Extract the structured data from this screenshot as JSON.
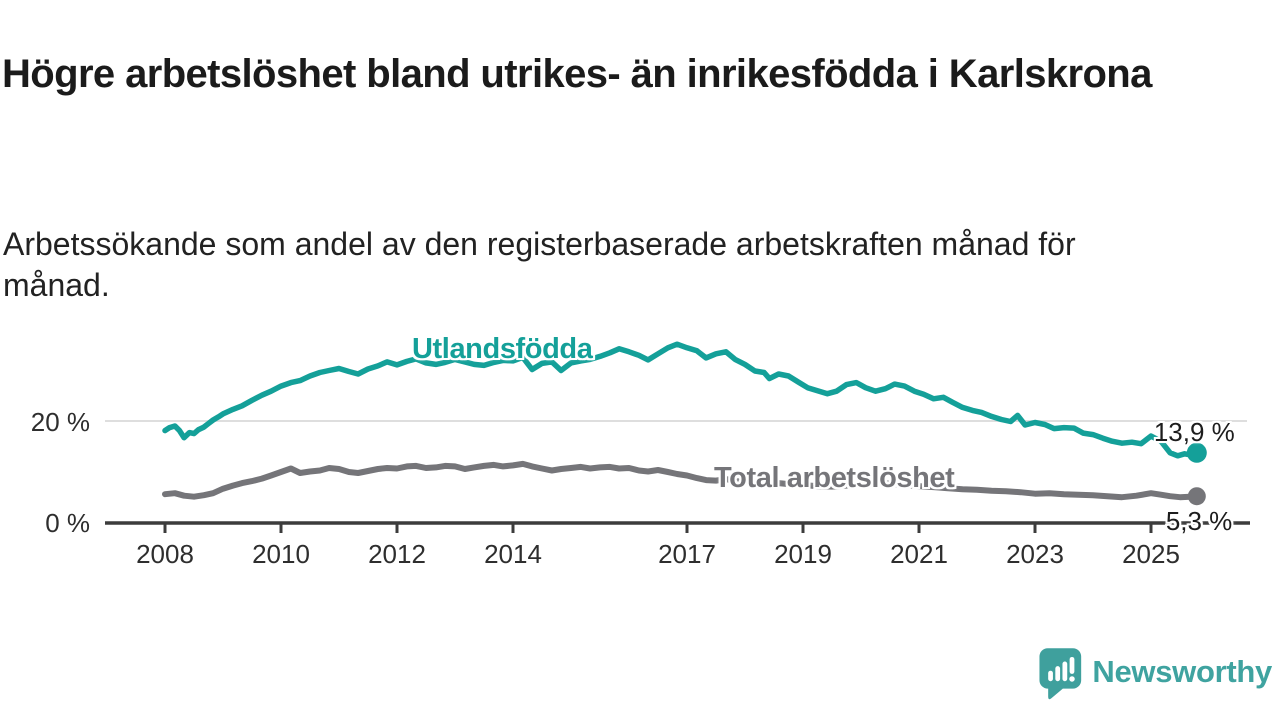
{
  "header": {
    "title": "Högre arbetslöshet bland utrikes- än inrikesfödda i Karlskrona",
    "subtitle": "Arbetssökande som andel av den registerbaserade arbetskraften månad för månad."
  },
  "chart_data": {
    "type": "line",
    "title": "Högre arbetslöshet bland utrikes- än inrikesfödda i Karlskrona",
    "xlabel": "",
    "ylabel": "Arbetssökande som andel av den registerbaserade arbetskraften",
    "x_range": [
      2007.0,
      2026.6
    ],
    "ylim": [
      0,
      40
    ],
    "grid": "horizontal gridline at 20% only",
    "legend_position": "labels drawn on lines",
    "x_ticks": [
      [
        2008,
        "2008"
      ],
      [
        2010,
        "2010"
      ],
      [
        2012,
        "2012"
      ],
      [
        2014,
        "2014"
      ],
      [
        2017,
        "2017"
      ],
      [
        2019,
        "2019"
      ],
      [
        2021,
        "2021"
      ],
      [
        2023,
        "2023"
      ],
      [
        2025,
        "2025"
      ]
    ],
    "y_ticks": [
      [
        0,
        "0 %"
      ],
      [
        20,
        "20 %"
      ]
    ],
    "series": [
      {
        "name": "Utlandsfödda",
        "color": "#14A099",
        "end_label": "13,9 %",
        "end_value": 13.9,
        "points": [
          [
            2008.0,
            18.3
          ],
          [
            2008.08,
            18.9
          ],
          [
            2008.17,
            19.2
          ],
          [
            2008.25,
            18.3
          ],
          [
            2008.33,
            16.9
          ],
          [
            2008.42,
            17.9
          ],
          [
            2008.5,
            17.7
          ],
          [
            2008.58,
            18.5
          ],
          [
            2008.67,
            19.0
          ],
          [
            2008.75,
            19.7
          ],
          [
            2008.83,
            20.4
          ],
          [
            2008.92,
            21.0
          ],
          [
            2009.0,
            21.6
          ],
          [
            2009.17,
            22.5
          ],
          [
            2009.33,
            23.2
          ],
          [
            2009.5,
            24.3
          ],
          [
            2009.67,
            25.3
          ],
          [
            2009.83,
            26.1
          ],
          [
            2010.0,
            27.1
          ],
          [
            2010.17,
            27.8
          ],
          [
            2010.33,
            28.2
          ],
          [
            2010.5,
            29.1
          ],
          [
            2010.67,
            29.8
          ],
          [
            2010.83,
            30.2
          ],
          [
            2011.0,
            30.6
          ],
          [
            2011.17,
            30.0
          ],
          [
            2011.33,
            29.5
          ],
          [
            2011.5,
            30.5
          ],
          [
            2011.67,
            31.1
          ],
          [
            2011.83,
            31.9
          ],
          [
            2012.0,
            31.3
          ],
          [
            2012.17,
            32.0
          ],
          [
            2012.33,
            32.5
          ],
          [
            2012.5,
            31.7
          ],
          [
            2012.67,
            31.4
          ],
          [
            2012.83,
            31.8
          ],
          [
            2013.0,
            32.4
          ],
          [
            2013.17,
            31.9
          ],
          [
            2013.33,
            31.4
          ],
          [
            2013.5,
            31.2
          ],
          [
            2013.67,
            31.8
          ],
          [
            2013.83,
            32.2
          ],
          [
            2014.0,
            32.1
          ],
          [
            2014.17,
            32.8
          ],
          [
            2014.33,
            30.4
          ],
          [
            2014.5,
            31.6
          ],
          [
            2014.67,
            31.9
          ],
          [
            2014.83,
            30.2
          ],
          [
            2015.0,
            31.7
          ],
          [
            2015.17,
            32.1
          ],
          [
            2015.33,
            32.4
          ],
          [
            2015.5,
            33.0
          ],
          [
            2015.67,
            33.7
          ],
          [
            2015.83,
            34.5
          ],
          [
            2016.0,
            33.9
          ],
          [
            2016.17,
            33.2
          ],
          [
            2016.33,
            32.3
          ],
          [
            2016.5,
            33.5
          ],
          [
            2016.67,
            34.7
          ],
          [
            2016.83,
            35.4
          ],
          [
            2017.0,
            34.7
          ],
          [
            2017.17,
            34.1
          ],
          [
            2017.33,
            32.7
          ],
          [
            2017.5,
            33.5
          ],
          [
            2017.67,
            33.9
          ],
          [
            2017.83,
            32.4
          ],
          [
            2018.0,
            31.4
          ],
          [
            2018.17,
            30.1
          ],
          [
            2018.33,
            29.8
          ],
          [
            2018.42,
            28.6
          ],
          [
            2018.58,
            29.5
          ],
          [
            2018.75,
            29.1
          ],
          [
            2018.92,
            27.9
          ],
          [
            2019.08,
            26.8
          ],
          [
            2019.25,
            26.2
          ],
          [
            2019.42,
            25.6
          ],
          [
            2019.58,
            26.1
          ],
          [
            2019.75,
            27.4
          ],
          [
            2019.92,
            27.8
          ],
          [
            2020.08,
            26.8
          ],
          [
            2020.25,
            26.1
          ],
          [
            2020.42,
            26.6
          ],
          [
            2020.58,
            27.5
          ],
          [
            2020.75,
            27.1
          ],
          [
            2020.92,
            26.1
          ],
          [
            2021.08,
            25.5
          ],
          [
            2021.25,
            24.6
          ],
          [
            2021.42,
            24.9
          ],
          [
            2021.58,
            23.9
          ],
          [
            2021.75,
            22.9
          ],
          [
            2021.92,
            22.3
          ],
          [
            2022.08,
            21.9
          ],
          [
            2022.25,
            21.1
          ],
          [
            2022.42,
            20.5
          ],
          [
            2022.58,
            20.1
          ],
          [
            2022.7,
            21.3
          ],
          [
            2022.83,
            19.4
          ],
          [
            2023.0,
            19.9
          ],
          [
            2023.17,
            19.5
          ],
          [
            2023.33,
            18.7
          ],
          [
            2023.5,
            18.9
          ],
          [
            2023.67,
            18.8
          ],
          [
            2023.83,
            17.8
          ],
          [
            2024.0,
            17.5
          ],
          [
            2024.17,
            16.8
          ],
          [
            2024.33,
            16.2
          ],
          [
            2024.5,
            15.8
          ],
          [
            2024.67,
            16.0
          ],
          [
            2024.83,
            15.7
          ],
          [
            2025.0,
            17.2
          ],
          [
            2025.17,
            16.2
          ],
          [
            2025.33,
            13.9
          ],
          [
            2025.46,
            13.3
          ],
          [
            2025.58,
            13.7
          ],
          [
            2025.67,
            13.5
          ],
          [
            2025.79,
            13.9
          ]
        ]
      },
      {
        "name": "Total arbetslöshet",
        "color": "#757579",
        "end_label": "5,3 %",
        "end_value": 5.3,
        "points": [
          [
            2008.0,
            5.7
          ],
          [
            2008.17,
            5.9
          ],
          [
            2008.33,
            5.4
          ],
          [
            2008.5,
            5.2
          ],
          [
            2008.67,
            5.5
          ],
          [
            2008.83,
            5.9
          ],
          [
            2009.0,
            6.8
          ],
          [
            2009.17,
            7.4
          ],
          [
            2009.33,
            7.9
          ],
          [
            2009.5,
            8.3
          ],
          [
            2009.67,
            8.8
          ],
          [
            2009.83,
            9.4
          ],
          [
            2010.0,
            10.1
          ],
          [
            2010.17,
            10.8
          ],
          [
            2010.33,
            9.9
          ],
          [
            2010.5,
            10.2
          ],
          [
            2010.67,
            10.4
          ],
          [
            2010.83,
            10.9
          ],
          [
            2011.0,
            10.7
          ],
          [
            2011.17,
            10.1
          ],
          [
            2011.33,
            9.9
          ],
          [
            2011.5,
            10.3
          ],
          [
            2011.67,
            10.7
          ],
          [
            2011.83,
            10.9
          ],
          [
            2012.0,
            10.8
          ],
          [
            2012.17,
            11.2
          ],
          [
            2012.33,
            11.3
          ],
          [
            2012.5,
            10.9
          ],
          [
            2012.67,
            11.0
          ],
          [
            2012.83,
            11.3
          ],
          [
            2013.0,
            11.2
          ],
          [
            2013.17,
            10.7
          ],
          [
            2013.33,
            11.0
          ],
          [
            2013.5,
            11.3
          ],
          [
            2013.67,
            11.5
          ],
          [
            2013.83,
            11.2
          ],
          [
            2014.0,
            11.4
          ],
          [
            2014.17,
            11.7
          ],
          [
            2014.33,
            11.2
          ],
          [
            2014.5,
            10.8
          ],
          [
            2014.67,
            10.4
          ],
          [
            2014.83,
            10.7
          ],
          [
            2015.0,
            10.9
          ],
          [
            2015.17,
            11.1
          ],
          [
            2015.33,
            10.8
          ],
          [
            2015.5,
            11.0
          ],
          [
            2015.67,
            11.1
          ],
          [
            2015.83,
            10.8
          ],
          [
            2016.0,
            10.9
          ],
          [
            2016.17,
            10.4
          ],
          [
            2016.33,
            10.2
          ],
          [
            2016.5,
            10.5
          ],
          [
            2016.67,
            10.1
          ],
          [
            2016.83,
            9.7
          ],
          [
            2017.0,
            9.4
          ],
          [
            2017.17,
            8.9
          ],
          [
            2017.33,
            8.5
          ],
          [
            2017.5,
            8.4
          ],
          [
            2017.67,
            8.7
          ],
          [
            2017.83,
            8.3
          ],
          [
            2018.0,
            8.2
          ],
          [
            2018.25,
            7.9
          ],
          [
            2018.5,
            8.0
          ],
          [
            2018.75,
            7.7
          ],
          [
            2019.0,
            7.5
          ],
          [
            2019.25,
            7.3
          ],
          [
            2019.5,
            7.2
          ],
          [
            2019.75,
            7.4
          ],
          [
            2020.0,
            7.6
          ],
          [
            2020.25,
            8.0
          ],
          [
            2020.5,
            7.8
          ],
          [
            2020.75,
            7.5
          ],
          [
            2021.0,
            7.3
          ],
          [
            2021.25,
            7.1
          ],
          [
            2021.5,
            6.9
          ],
          [
            2021.75,
            6.7
          ],
          [
            2022.0,
            6.6
          ],
          [
            2022.25,
            6.4
          ],
          [
            2022.5,
            6.3
          ],
          [
            2022.75,
            6.1
          ],
          [
            2023.0,
            5.8
          ],
          [
            2023.25,
            5.9
          ],
          [
            2023.5,
            5.7
          ],
          [
            2023.75,
            5.6
          ],
          [
            2024.0,
            5.5
          ],
          [
            2024.25,
            5.3
          ],
          [
            2024.5,
            5.1
          ],
          [
            2024.75,
            5.4
          ],
          [
            2025.0,
            5.9
          ],
          [
            2025.17,
            5.6
          ],
          [
            2025.33,
            5.3
          ],
          [
            2025.5,
            5.1
          ],
          [
            2025.67,
            5.2
          ],
          [
            2025.79,
            5.3
          ]
        ]
      }
    ],
    "colors": {
      "grid": "#DEDEDE",
      "axis": "#3C3C3C",
      "tick_text": "#2E2E2E",
      "value_label_text": "#1D1D1D"
    }
  },
  "branding": {
    "logo_text": "Newsworthy",
    "logo_color": "#3FA3A0"
  }
}
